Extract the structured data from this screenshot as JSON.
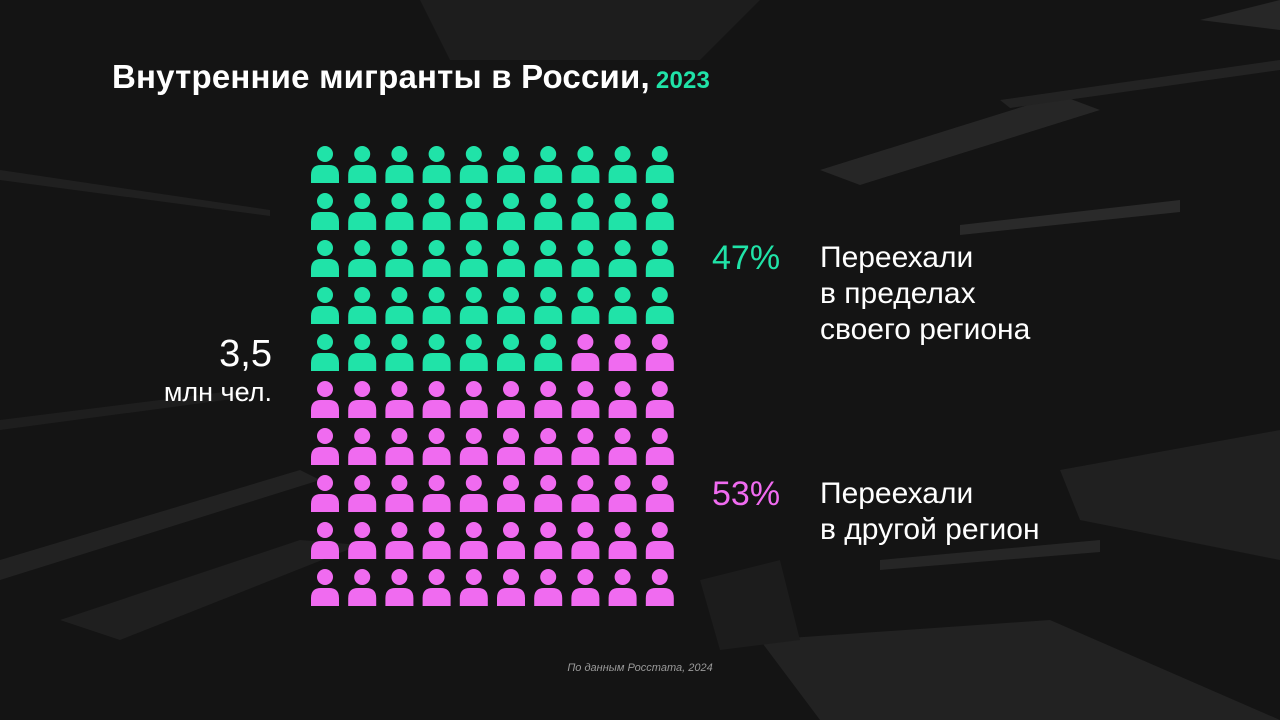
{
  "chart_data": {
    "type": "pictogram",
    "title": "Внутренние мигранты в России,",
    "subtitle": "2023",
    "total_value": "3,5",
    "total_unit": "млн чел.",
    "icons_total": 100,
    "icons_per_row": 10,
    "series": [
      {
        "name": "Переехали\nв пределах\nсвоего региона",
        "percent_label": "47%",
        "icons": 47,
        "color": "#20e3a8"
      },
      {
        "name": "Переехали\nв другой регион",
        "percent_label": "53%",
        "icons": 53,
        "color": "#f06bf0"
      }
    ],
    "source": "По данным Росстата, 2024"
  }
}
